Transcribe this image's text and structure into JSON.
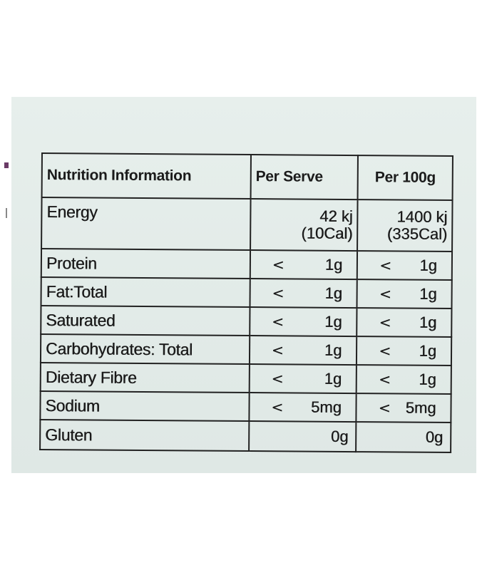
{
  "table": {
    "headers": [
      "Nutrition Information",
      "Per Serve",
      "Per 100g"
    ],
    "energy": {
      "name": "Energy",
      "per_serve_line1": "42 kj",
      "per_serve_line2": "(10Cal)",
      "per_100g_line1": "1400 kj",
      "per_100g_line2": "(335Cal)"
    },
    "rows": [
      {
        "name": "Protein",
        "serve_sym": "<",
        "serve_val": "1g",
        "g100_sym": "<",
        "g100_val": "1g"
      },
      {
        "name": "Fat:Total",
        "serve_sym": "<",
        "serve_val": "1g",
        "g100_sym": "<",
        "g100_val": "1g"
      },
      {
        "name": "Saturated",
        "serve_sym": "<",
        "serve_val": "1g",
        "g100_sym": "<",
        "g100_val": "1g"
      },
      {
        "name": "Carbohydrates: Total",
        "serve_sym": "<",
        "serve_val": "1g",
        "g100_sym": "<",
        "g100_val": "1g"
      },
      {
        "name": "Dietary Fibre",
        "serve_sym": "<",
        "serve_val": "1g",
        "g100_sym": "<",
        "g100_val": "1g"
      },
      {
        "name": "Sodium",
        "serve_sym": "<",
        "serve_val": "5mg",
        "g100_sym": "<",
        "g100_val": "5mg"
      },
      {
        "name": "Gluten",
        "serve_val": "0g",
        "g100_val": "0g"
      }
    ]
  },
  "colors": {
    "background": "#e4ece9",
    "ink": "#1b1b1b"
  }
}
